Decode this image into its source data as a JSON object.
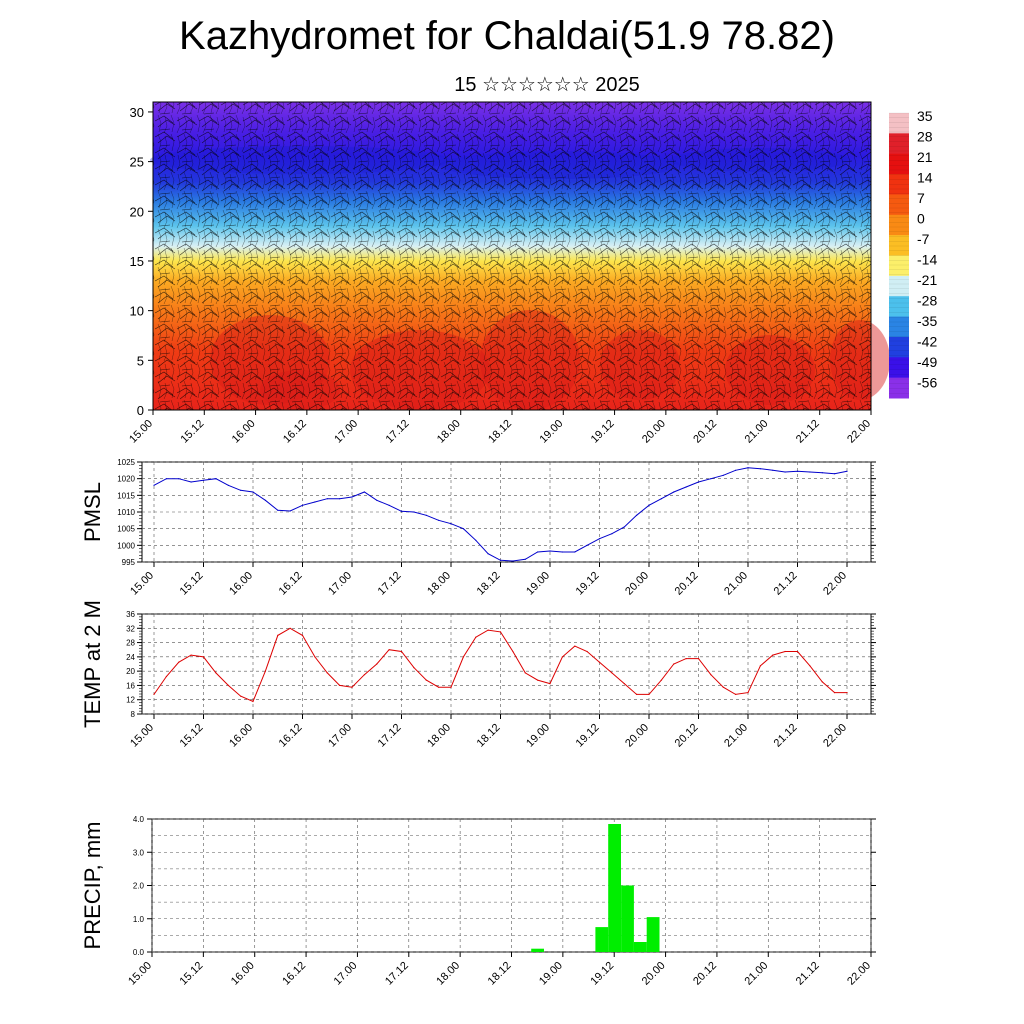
{
  "title": "Kazhydromet for Chaldai(51.9 78.82)",
  "subtitle": "15 ☆☆☆☆☆☆ 2025",
  "chart_data": [
    {
      "type": "heatmap",
      "yticks": [
        0,
        5,
        10,
        15,
        20,
        25,
        30
      ],
      "ylim": [
        0,
        31
      ],
      "xticks": [
        "15.00",
        "15.12",
        "16.00",
        "16.12",
        "17.00",
        "17.12",
        "18.00",
        "18.12",
        "19.00",
        "19.12",
        "20.00",
        "20.12",
        "21.00",
        "21.12",
        "22.00"
      ],
      "colorbar_labels": [
        "35",
        "28",
        "21",
        "14",
        "7",
        "0",
        "-7",
        "-14",
        "-21",
        "-28",
        "-35",
        "-42",
        "-49",
        "-56"
      ],
      "colorbar_colors": [
        "#f4c0c4",
        "#e0202a",
        "#e51010",
        "#f03210",
        "#f55a10",
        "#f98a14",
        "#fbbe24",
        "#fcef6a",
        "#d0eef4",
        "#4cc0ec",
        "#2a84e4",
        "#2040e0",
        "#3a10e8",
        "#8a30e8"
      ],
      "profile_colors": [
        {
          "h": 0,
          "color": "#e8231a"
        },
        {
          "h": 6,
          "color": "#ef3c14"
        },
        {
          "h": 10,
          "color": "#f77a18"
        },
        {
          "h": 13,
          "color": "#fbaa22"
        },
        {
          "h": 15,
          "color": "#fde64c"
        },
        {
          "h": 16.5,
          "color": "#d8f0f4"
        },
        {
          "h": 18.5,
          "color": "#5cc4ec"
        },
        {
          "h": 21,
          "color": "#2a7ae2"
        },
        {
          "h": 23,
          "color": "#2236dc"
        },
        {
          "h": 25.5,
          "color": "#2a1ae0"
        },
        {
          "h": 28,
          "color": "#4a1ee4"
        },
        {
          "h": 31,
          "color": "#7a30e6"
        }
      ]
    },
    {
      "type": "line",
      "ylabel": "PMSL",
      "ylim": [
        995,
        1025
      ],
      "yticks": [
        995,
        1000,
        1005,
        1010,
        1015,
        1020,
        1025
      ],
      "xticks": [
        "15.00",
        "15.12",
        "16.00",
        "16.12",
        "17.00",
        "17.12",
        "18.00",
        "18.12",
        "19.00",
        "19.12",
        "20.00",
        "20.12",
        "21.00",
        "21.12",
        "22.00"
      ],
      "color": "#0000cc",
      "x": [
        0,
        3,
        6,
        9,
        12,
        15,
        18,
        21,
        24,
        27,
        30,
        33,
        36,
        39,
        42,
        45,
        48,
        51,
        54,
        57,
        60,
        63,
        66,
        69,
        72,
        75,
        78,
        81,
        84,
        87,
        90,
        93,
        96,
        99,
        102,
        105,
        108,
        111,
        114,
        117,
        120,
        123,
        126,
        129,
        132,
        135,
        138,
        141,
        144,
        147,
        150,
        153,
        156,
        159,
        162,
        165,
        168
      ],
      "values": [
        1018,
        1020,
        1020,
        1019,
        1019.5,
        1020,
        1018,
        1016.5,
        1016,
        1013.5,
        1010.5,
        1010.3,
        1012,
        1013,
        1014,
        1014,
        1014.5,
        1016,
        1013.5,
        1012,
        1010.2,
        1010,
        1009,
        1007.5,
        1006.5,
        1005,
        1001.5,
        997.5,
        995.5,
        995.3,
        995.8,
        998,
        998.3,
        998,
        998,
        1000,
        1002,
        1003.5,
        1005.5,
        1009,
        1012,
        1014,
        1016,
        1017.5,
        1019,
        1020,
        1021,
        1022.5,
        1023.3,
        1023,
        1022.5,
        1022,
        1022.2,
        1022,
        1021.8,
        1021.5,
        1022.2
      ]
    },
    {
      "type": "line",
      "ylabel": "TEMP at 2 M",
      "ylim": [
        8,
        36
      ],
      "yticks": [
        8,
        12,
        16,
        20,
        24,
        28,
        32,
        36
      ],
      "xticks": [
        "15.00",
        "15.12",
        "16.00",
        "16.12",
        "17.00",
        "17.12",
        "18.00",
        "18.12",
        "19.00",
        "19.12",
        "20.00",
        "20.12",
        "21.00",
        "21.12",
        "22.00"
      ],
      "color": "#dd0000",
      "x": [
        0,
        3,
        6,
        9,
        12,
        15,
        18,
        21,
        24,
        27,
        30,
        33,
        36,
        39,
        42,
        45,
        48,
        51,
        54,
        57,
        60,
        63,
        66,
        69,
        72,
        75,
        78,
        81,
        84,
        87,
        90,
        93,
        96,
        99,
        102,
        105,
        108,
        111,
        114,
        117,
        120,
        123,
        126,
        129,
        132,
        135,
        138,
        141,
        144,
        147,
        150,
        153,
        156,
        159,
        162,
        165,
        168
      ],
      "values": [
        13.5,
        18.5,
        22.5,
        24.5,
        24,
        19.5,
        16,
        13,
        11.5,
        20,
        30,
        32,
        30,
        24,
        19.5,
        16,
        15.5,
        19,
        22,
        26,
        25.5,
        21,
        17.5,
        15.5,
        15.5,
        24,
        29.5,
        31.5,
        31,
        25.5,
        19.5,
        17.5,
        16.5,
        24,
        27,
        25.5,
        22.5,
        19.5,
        16.5,
        13.5,
        13.5,
        17.5,
        22,
        23.5,
        23.5,
        19,
        15.5,
        13.5,
        14,
        21.5,
        24.5,
        25.5,
        25.5,
        21.5,
        17,
        14,
        14
      ]
    },
    {
      "type": "bar",
      "ylabel": "PRECIP, mm",
      "ylim": [
        0,
        4
      ],
      "yticks": [
        "0.0",
        "1.0",
        "2.0",
        "3.0",
        "4.0"
      ],
      "xticks": [
        "15.00",
        "15.12",
        "16.00",
        "16.12",
        "17.00",
        "17.12",
        "18.00",
        "18.12",
        "19.00",
        "19.12",
        "20.00",
        "20.12",
        "21.00",
        "21.12",
        "22.00"
      ],
      "color": "#00ee00",
      "x": [
        90,
        105,
        108,
        111,
        114,
        117
      ],
      "values": [
        0.1,
        0.75,
        3.85,
        2.0,
        0.3,
        1.05
      ]
    }
  ]
}
